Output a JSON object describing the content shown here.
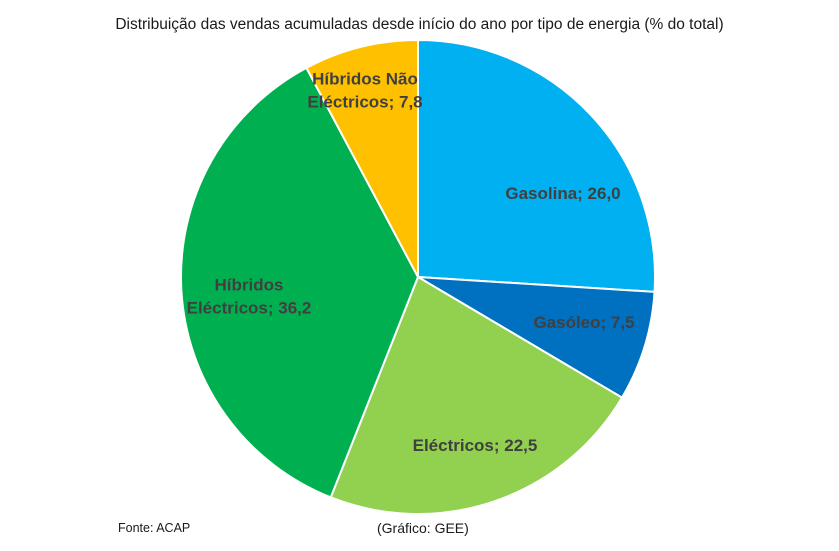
{
  "chart_data": {
    "type": "pie",
    "title": "Distribuição das vendas acumuladas desde início do ano por tipo de energia (% do total)",
    "categories": [
      "Gasolina",
      "Gasóleo",
      "Eléctricos",
      "Híbridos Eléctricos",
      "Híbridos Não Eléctricos"
    ],
    "values": [
      26.0,
      7.5,
      22.5,
      36.2,
      7.8
    ],
    "data_labels": [
      [
        "Gasolina; 26,0"
      ],
      [
        "Gasóleo; 7,5"
      ],
      [
        "Eléctricos; 22,5"
      ],
      [
        "Híbridos",
        "Eléctricos; 36,2"
      ],
      [
        "Híbridos Não",
        "Eléctricos; 7,8"
      ]
    ],
    "colors": [
      "#00b0f0",
      "#0070c0",
      "#92d050",
      "#00b050",
      "#ffc000"
    ],
    "legend": "none"
  },
  "footer": {
    "source": "Fonte: ACAP",
    "credit": "(Gráfico: GEE)"
  }
}
